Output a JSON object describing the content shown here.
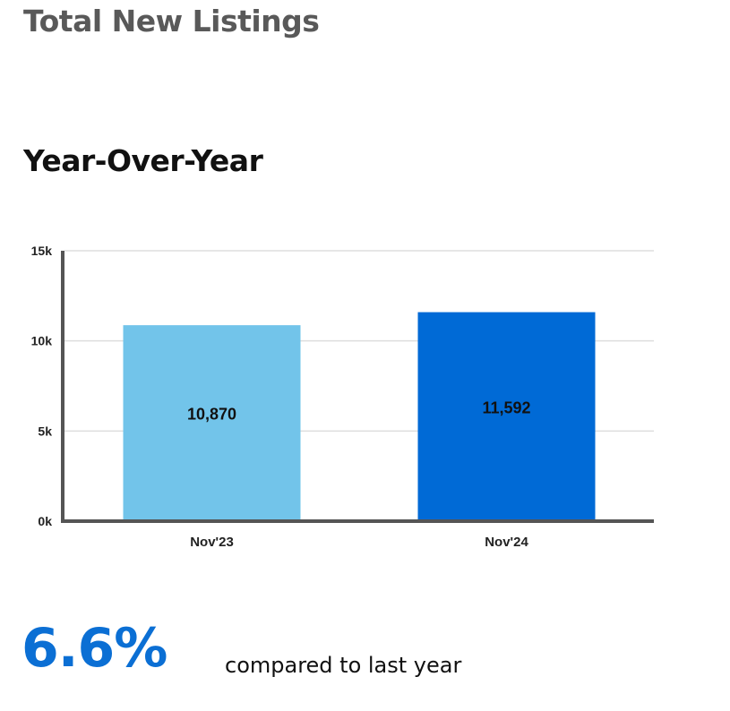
{
  "header": {
    "title": "Total New Listings",
    "subtitle": "Year-Over-Year"
  },
  "chart_data": {
    "type": "bar",
    "categories": [
      "Nov'23",
      "Nov'24"
    ],
    "values": [
      10870,
      11592
    ],
    "data_labels": [
      "10,870",
      "11,592"
    ],
    "ylim": [
      0,
      15000
    ],
    "yticks": [
      {
        "value": 0,
        "label": "0k"
      },
      {
        "value": 5000,
        "label": "5k"
      },
      {
        "value": 10000,
        "label": "10k"
      },
      {
        "value": 15000,
        "label": "15k"
      }
    ],
    "grid": true,
    "legend": "none",
    "colors": [
      "#72c4ea",
      "#006ad6"
    ],
    "title": "",
    "xlabel": "",
    "ylabel": ""
  },
  "summary": {
    "change_value": "6.6%",
    "change_caption": "compared to last year",
    "accent_color": "#0b6fd4"
  }
}
